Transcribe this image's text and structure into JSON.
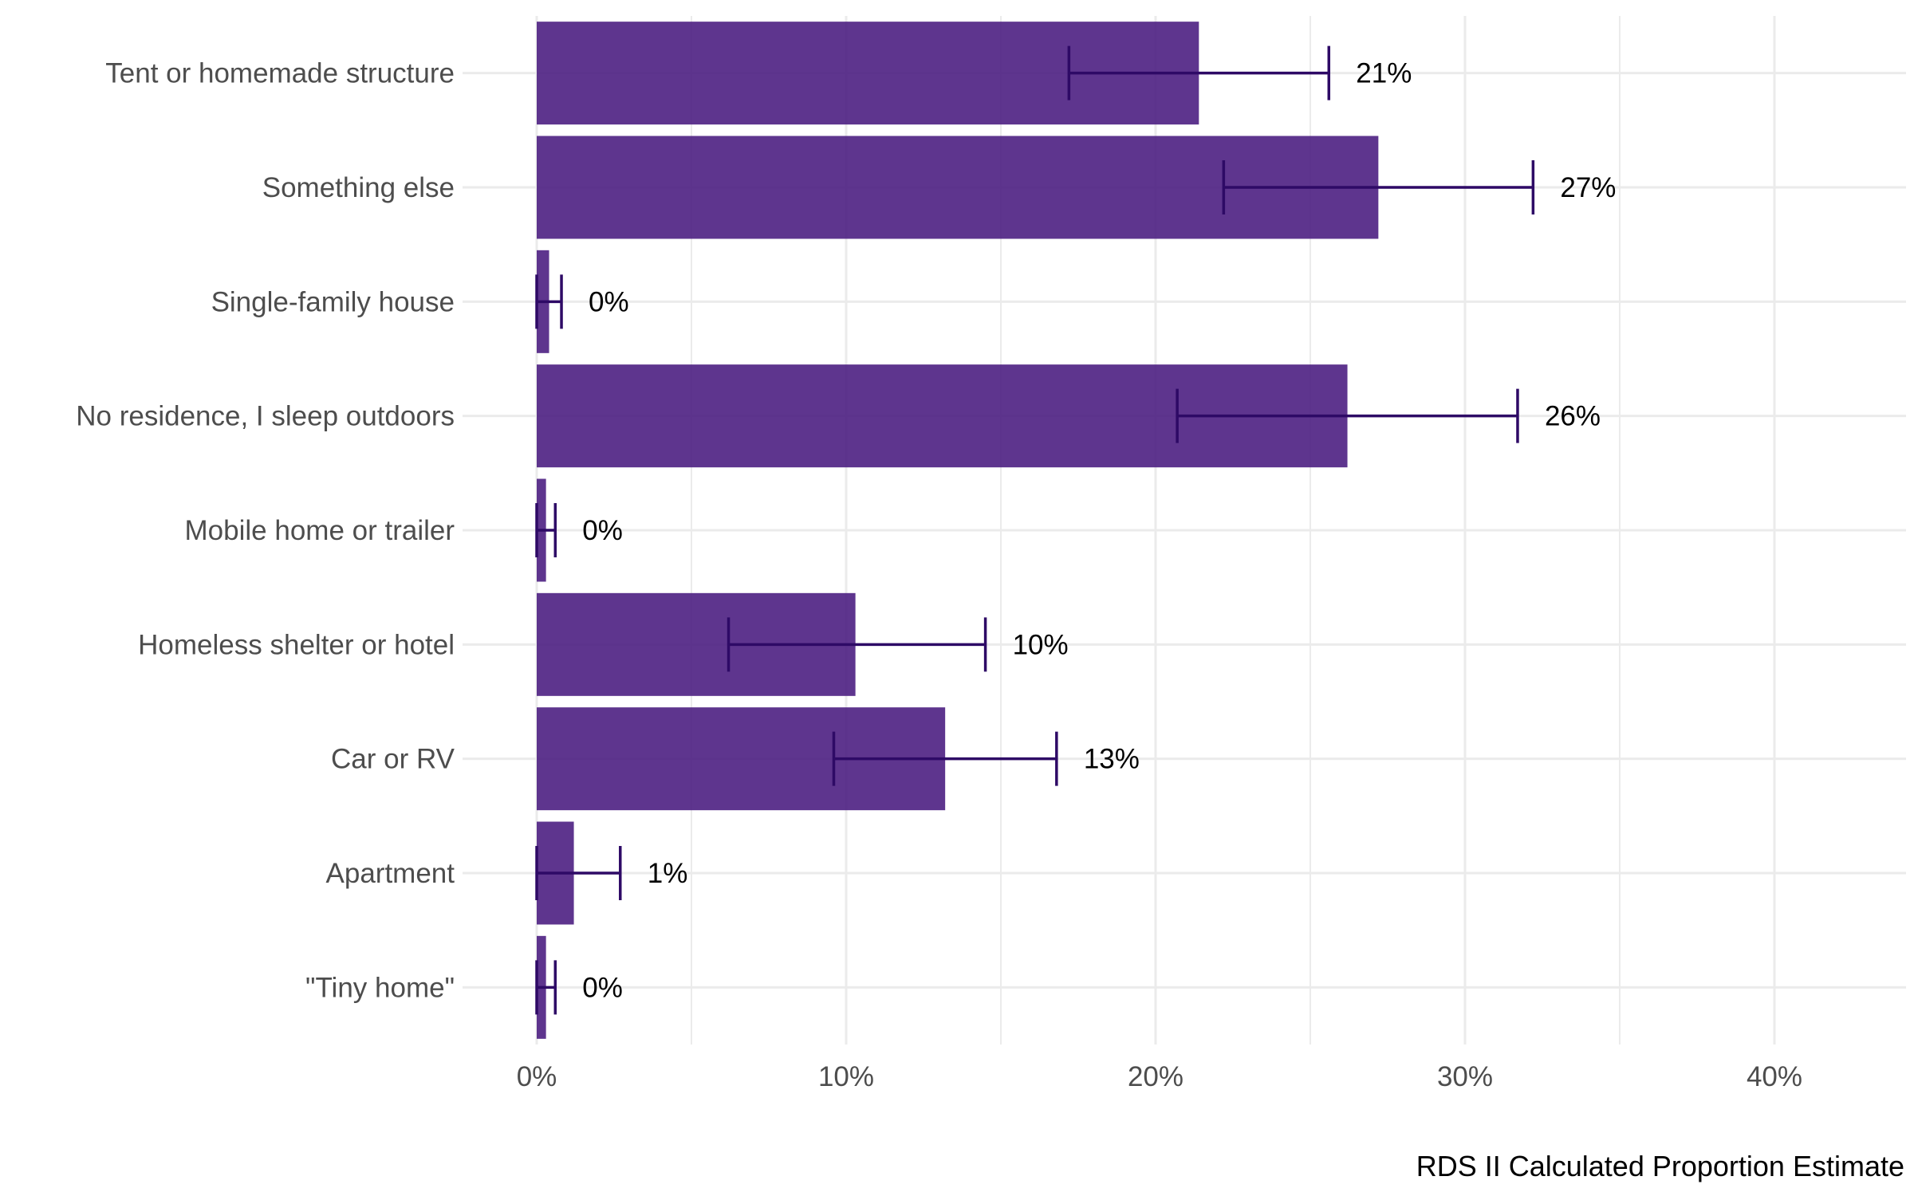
{
  "chart_data": {
    "type": "bar",
    "orientation": "horizontal",
    "categories": [
      "Tent or homemade structure",
      "Something else",
      "Single-family house",
      "No residence, I sleep outdoors",
      "Mobile home or trailer",
      "Homeless shelter or hotel",
      "Car or RV",
      "Apartment",
      "\"Tiny home\""
    ],
    "values": [
      0.214,
      0.272,
      0.004,
      0.262,
      0.003,
      0.103,
      0.132,
      0.012,
      0.003
    ],
    "error_low": [
      0.172,
      0.222,
      0.0,
      0.207,
      0.0,
      0.062,
      0.096,
      0.0,
      0.0
    ],
    "error_high": [
      0.256,
      0.322,
      0.008,
      0.317,
      0.006,
      0.145,
      0.168,
      0.027,
      0.006
    ],
    "data_labels": [
      "21%",
      "27%",
      "0%",
      "26%",
      "0%",
      "10%",
      "13%",
      "1%",
      "0%"
    ],
    "xlabel": "RDS II Calculated Proportion Estimate",
    "ylabel": "",
    "xlim": [
      -0.02,
      0.44
    ],
    "x_ticks": [
      0,
      0.1,
      0.2,
      0.3,
      0.4
    ],
    "x_tick_labels": [
      "0%",
      "10%",
      "20%",
      "30%",
      "40%"
    ],
    "grid": true,
    "legend": "none",
    "colors": {
      "bar": "#4a1c80",
      "error_bar": "#2e0a66",
      "grid": "#ebebeb"
    }
  }
}
